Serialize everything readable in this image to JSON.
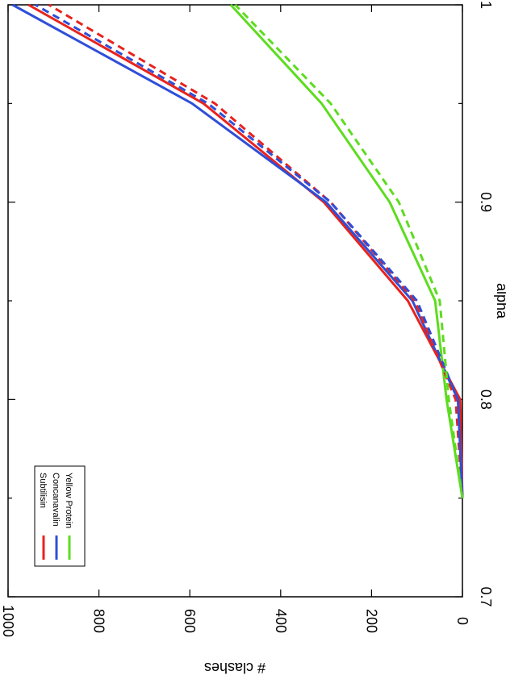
{
  "chart_data": {
    "type": "line",
    "orientation": "rotated-90-clockwise",
    "xlabel": "alpha",
    "ylabel": "# clashes",
    "xlim": [
      0.7,
      1.0
    ],
    "ylim": [
      0,
      1000
    ],
    "x_ticks": [
      "0.7",
      "0.8",
      "0.9",
      "1"
    ],
    "y_ticks": [
      "0",
      "200",
      "400",
      "600",
      "800",
      "1000"
    ],
    "legend_placement": "lower-left",
    "series": [
      {
        "name": "Subtilisin",
        "color": "#e8231d",
        "style": "solid",
        "x": [
          0.75,
          0.8,
          0.85,
          0.9,
          0.95,
          1.0
        ],
        "y": [
          0,
          5,
          120,
          305,
          570,
          955
        ]
      },
      {
        "name": "Concanavalin",
        "color": "#2f4fd8",
        "style": "solid",
        "x": [
          0.75,
          0.8,
          0.85,
          0.9,
          0.95,
          1.0
        ],
        "y": [
          0,
          10,
          110,
          300,
          595,
          990
        ]
      },
      {
        "name": "Yellow Protein",
        "color": "#5ddc1f",
        "style": "solid",
        "x": [
          0.75,
          0.8,
          0.85,
          0.9,
          0.95,
          1.0
        ],
        "y": [
          0,
          35,
          60,
          160,
          310,
          510
        ]
      },
      {
        "color": "#e8231d",
        "style": "dashed",
        "x": [
          0.75,
          0.8,
          0.85,
          0.9,
          0.95,
          1.0
        ],
        "y": [
          0,
          15,
          105,
          290,
          545,
          910
        ]
      },
      {
        "color": "#2f4fd8",
        "style": "dashed",
        "x": [
          0.75,
          0.8,
          0.85,
          0.9,
          0.95,
          1.0
        ],
        "y": [
          0,
          10,
          100,
          290,
          560,
          940
        ]
      },
      {
        "color": "#5ddc1f",
        "style": "dashed",
        "x": [
          0.75,
          0.8,
          0.85,
          0.9,
          0.95,
          1.0
        ],
        "y": [
          0,
          30,
          50,
          140,
          290,
          500
        ]
      }
    ]
  }
}
